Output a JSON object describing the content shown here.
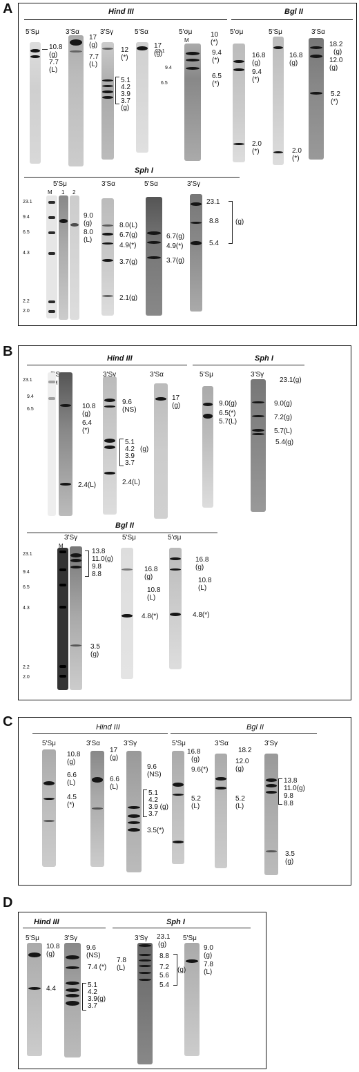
{
  "panels": [
    {
      "letter": "A",
      "enzymes": {
        "hind": "Hind III",
        "bgl": "Bgl II",
        "sph": "Sph I"
      },
      "row1_probes": [
        "5'Sμ",
        "3'Sα",
        "3'Sγ",
        "5'Sα",
        "5'σμ",
        "5'σμ",
        "5'Sμ",
        "3'Sα"
      ],
      "row2_probes": [
        "5'Sμ",
        "3'Sα",
        "5'Sα",
        "3'Sγ"
      ],
      "marker": "M",
      "lane_numbers": [
        "1",
        "2"
      ],
      "markers_row1": [
        "23.1",
        "9.4",
        "6.5"
      ],
      "markers_row2": [
        "23.1",
        "9.4",
        "6.5",
        "4.3",
        "2.2",
        "2.0"
      ],
      "labels": {
        "a1": [
          "10.8",
          "(g)",
          "7.7",
          "(L)"
        ],
        "a2": [
          "17",
          "(g)",
          "7.7",
          "(L)"
        ],
        "a3": [
          "12",
          "(*)",
          "5.1",
          "4.2",
          "3.9",
          "3.7",
          "(g)"
        ],
        "a4": [
          "17",
          "(g)"
        ],
        "a5": [
          "10",
          "(*)",
          "9.4",
          "(*)",
          "6.5",
          "(*)"
        ],
        "a6": [
          "16.8",
          "(g)",
          "9.4",
          "(*)",
          "2.0",
          "(*)"
        ],
        "a7": [
          "16.8",
          "(g)",
          "2.0",
          "(*)"
        ],
        "a8": [
          "18.2",
          "(g)",
          "12.0",
          "(g)",
          "5.2",
          "(*)"
        ],
        "s1": [
          "9.0",
          "(g)",
          "8.0",
          "(L)"
        ],
        "s2": [
          "8.0(L)",
          "6.7(g)",
          "4.9(*)",
          "3.7(g)",
          "2.1(g)"
        ],
        "s3": [
          "6.7(g)",
          "4.9(*)",
          "3.7(g)"
        ],
        "s4": [
          "23.1",
          "8.8",
          "5.4",
          "(g)"
        ]
      }
    },
    {
      "letter": "B",
      "enzymes": {
        "hind": "Hind III",
        "sph": "Sph I",
        "bgl": "Bgl II"
      },
      "row1_probes": [
        "5'Sμ",
        "3'Sγ",
        "3'Sα",
        "5'Sμ",
        "3'Sγ"
      ],
      "row2_probes": [
        "3'Sγ",
        "5'Sμ",
        "5'σμ"
      ],
      "marker": "M",
      "markers_row1": [
        "23.1",
        "9.4",
        "6.5"
      ],
      "markers_row2": [
        "23.1",
        "9.4",
        "6.5",
        "4.3",
        "2.2",
        "2.0"
      ],
      "labels": {
        "b1": [
          "10.8",
          "(g)",
          "6.4",
          "(*)",
          "2.4(L)"
        ],
        "b2": [
          "9.6",
          "(NS)",
          "5.1",
          "4.2",
          "(g)",
          "3.9",
          "3.7",
          "2.4(L)"
        ],
        "b3": [
          "17",
          "(g)"
        ],
        "b4": [
          "9.0(g)",
          "6.5(*)",
          "5.7(L)"
        ],
        "b5": [
          "23.1(g)",
          "9.0(g)",
          "7.2(g)",
          "5.7(L)",
          "5.4(g)"
        ],
        "b6": [
          "13.8",
          "11.0(g)",
          "9.8",
          "8.8",
          "3.5",
          "(g)"
        ],
        "b7": [
          "16.8",
          "(g)",
          "10.8",
          "(L)",
          "4.8(*)"
        ],
        "b8": [
          "16.8",
          "(g)",
          "10.8",
          "(L)",
          "4.8(*)"
        ]
      }
    },
    {
      "letter": "C",
      "enzymes": {
        "hind": "Hind III",
        "bgl": "Bgl II"
      },
      "probes": [
        "5'Sμ",
        "3'Sα",
        "3'Sγ",
        "5'Sμ",
        "3'Sα",
        "3'Sγ"
      ],
      "labels": {
        "c1": [
          "10.8",
          "(g)",
          "6.6",
          "(L)",
          "4.5",
          "(*)"
        ],
        "c2": [
          "17",
          "(g)",
          "6.6",
          "(L)"
        ],
        "c3": [
          "9.6",
          "(NS)",
          "5.1",
          "4.2",
          "3.9 (g)",
          "3.7",
          "3.5(*)"
        ],
        "c4": [
          "16.8",
          "(g)",
          "9.6(*)",
          "5.2",
          "(L)"
        ],
        "c5": [
          "18.2",
          "12.0",
          "(g)",
          "5.2",
          "(L)"
        ],
        "c6": [
          "13.8",
          "11.0(g)",
          "9.8",
          "8.8",
          "3.5",
          "(g)"
        ]
      }
    },
    {
      "letter": "D",
      "enzymes": {
        "hind": "Hind III",
        "sph": "Sph I"
      },
      "probes": [
        "5'Sμ",
        "3'Sγ",
        "3'Sγ",
        "5'Sμ"
      ],
      "labels": {
        "d1": [
          "10.8",
          "(g)",
          "4.4"
        ],
        "d2": [
          "9.6",
          "(NS)",
          "7.4 (*)",
          "5.1",
          "4.2",
          "3.9(g)",
          "3.7"
        ],
        "d3": [
          "23.1",
          "(g)",
          "8.8",
          "7.2",
          "5.6",
          "5.4",
          "(g)",
          "7.8",
          "(L)"
        ],
        "d4": [
          "9.0",
          "(g)",
          "7.8",
          "(L)"
        ]
      }
    }
  ]
}
